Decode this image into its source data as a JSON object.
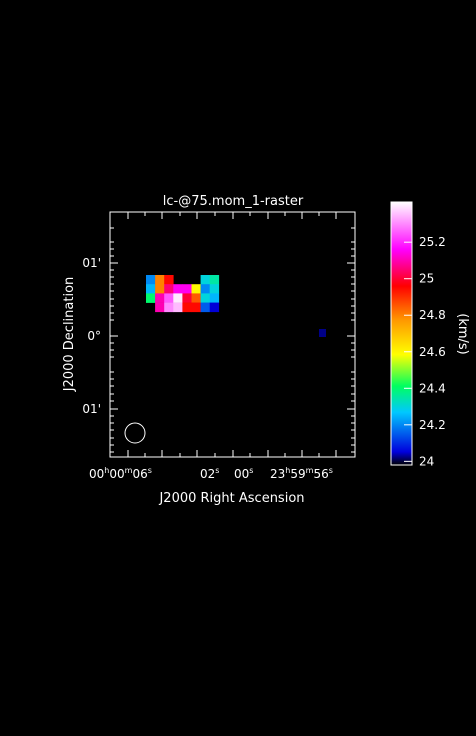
{
  "chart_data": {
    "type": "heatmap",
    "title": "lc-@75.mom_1-raster",
    "xlabel": "J2000 Right Ascension",
    "ylabel": "J2000 Declination",
    "x_ticks": [
      {
        "h": "00",
        "m": "00",
        "s": "06"
      },
      {
        "h": "",
        "m": "",
        "s": "02"
      },
      {
        "h": "",
        "m": "",
        "s": "00"
      },
      {
        "h": "23",
        "m": "59",
        "s": "56"
      }
    ],
    "y_ticks": [
      "01'",
      "0°",
      "01'"
    ],
    "colorbar": {
      "label": "(km/s)",
      "ticks": [
        "24",
        "24.2",
        "24.4",
        "24.6",
        "24.8",
        "25",
        "25.2"
      ],
      "range": [
        23.98,
        25.42
      ]
    },
    "pixels": [
      {
        "col": 0,
        "row": 0,
        "value": 24.2
      },
      {
        "col": 1,
        "row": 0,
        "value": 24.8
      },
      {
        "col": 2,
        "row": 0,
        "value": 24.95
      },
      {
        "col": 6,
        "row": 0,
        "value": 24.3
      },
      {
        "col": 7,
        "row": 0,
        "value": 24.35
      },
      {
        "col": 0,
        "row": 1,
        "value": 24.25
      },
      {
        "col": 1,
        "row": 1,
        "value": 24.8
      },
      {
        "col": 2,
        "row": 1,
        "value": 25.05
      },
      {
        "col": 3,
        "row": 1,
        "value": 25.15
      },
      {
        "col": 4,
        "row": 1,
        "value": 25.15
      },
      {
        "col": 5,
        "row": 1,
        "value": 24.6
      },
      {
        "col": 6,
        "row": 1,
        "value": 24.2
      },
      {
        "col": 7,
        "row": 1,
        "value": 24.3
      },
      {
        "col": 0,
        "row": 2,
        "value": 24.4
      },
      {
        "col": 1,
        "row": 2,
        "value": 25.1
      },
      {
        "col": 2,
        "row": 2,
        "value": 25.25
      },
      {
        "col": 3,
        "row": 2,
        "value": 25.4
      },
      {
        "col": 4,
        "row": 2,
        "value": 25.0
      },
      {
        "col": 5,
        "row": 2,
        "value": 24.85
      },
      {
        "col": 6,
        "row": 2,
        "value": 24.3
      },
      {
        "col": 7,
        "row": 2,
        "value": 24.25
      },
      {
        "col": 1,
        "row": 3,
        "value": 25.1
      },
      {
        "col": 2,
        "row": 3,
        "value": 25.3
      },
      {
        "col": 3,
        "row": 3,
        "value": 25.35
      },
      {
        "col": 4,
        "row": 3,
        "value": 24.95
      },
      {
        "col": 5,
        "row": 3,
        "value": 24.95
      },
      {
        "col": 6,
        "row": 3,
        "value": 24.15
      },
      {
        "col": 7,
        "row": 3,
        "value": 24.05
      }
    ],
    "isolated_pixel": {
      "value": 23.99
    },
    "beam": "circle"
  }
}
